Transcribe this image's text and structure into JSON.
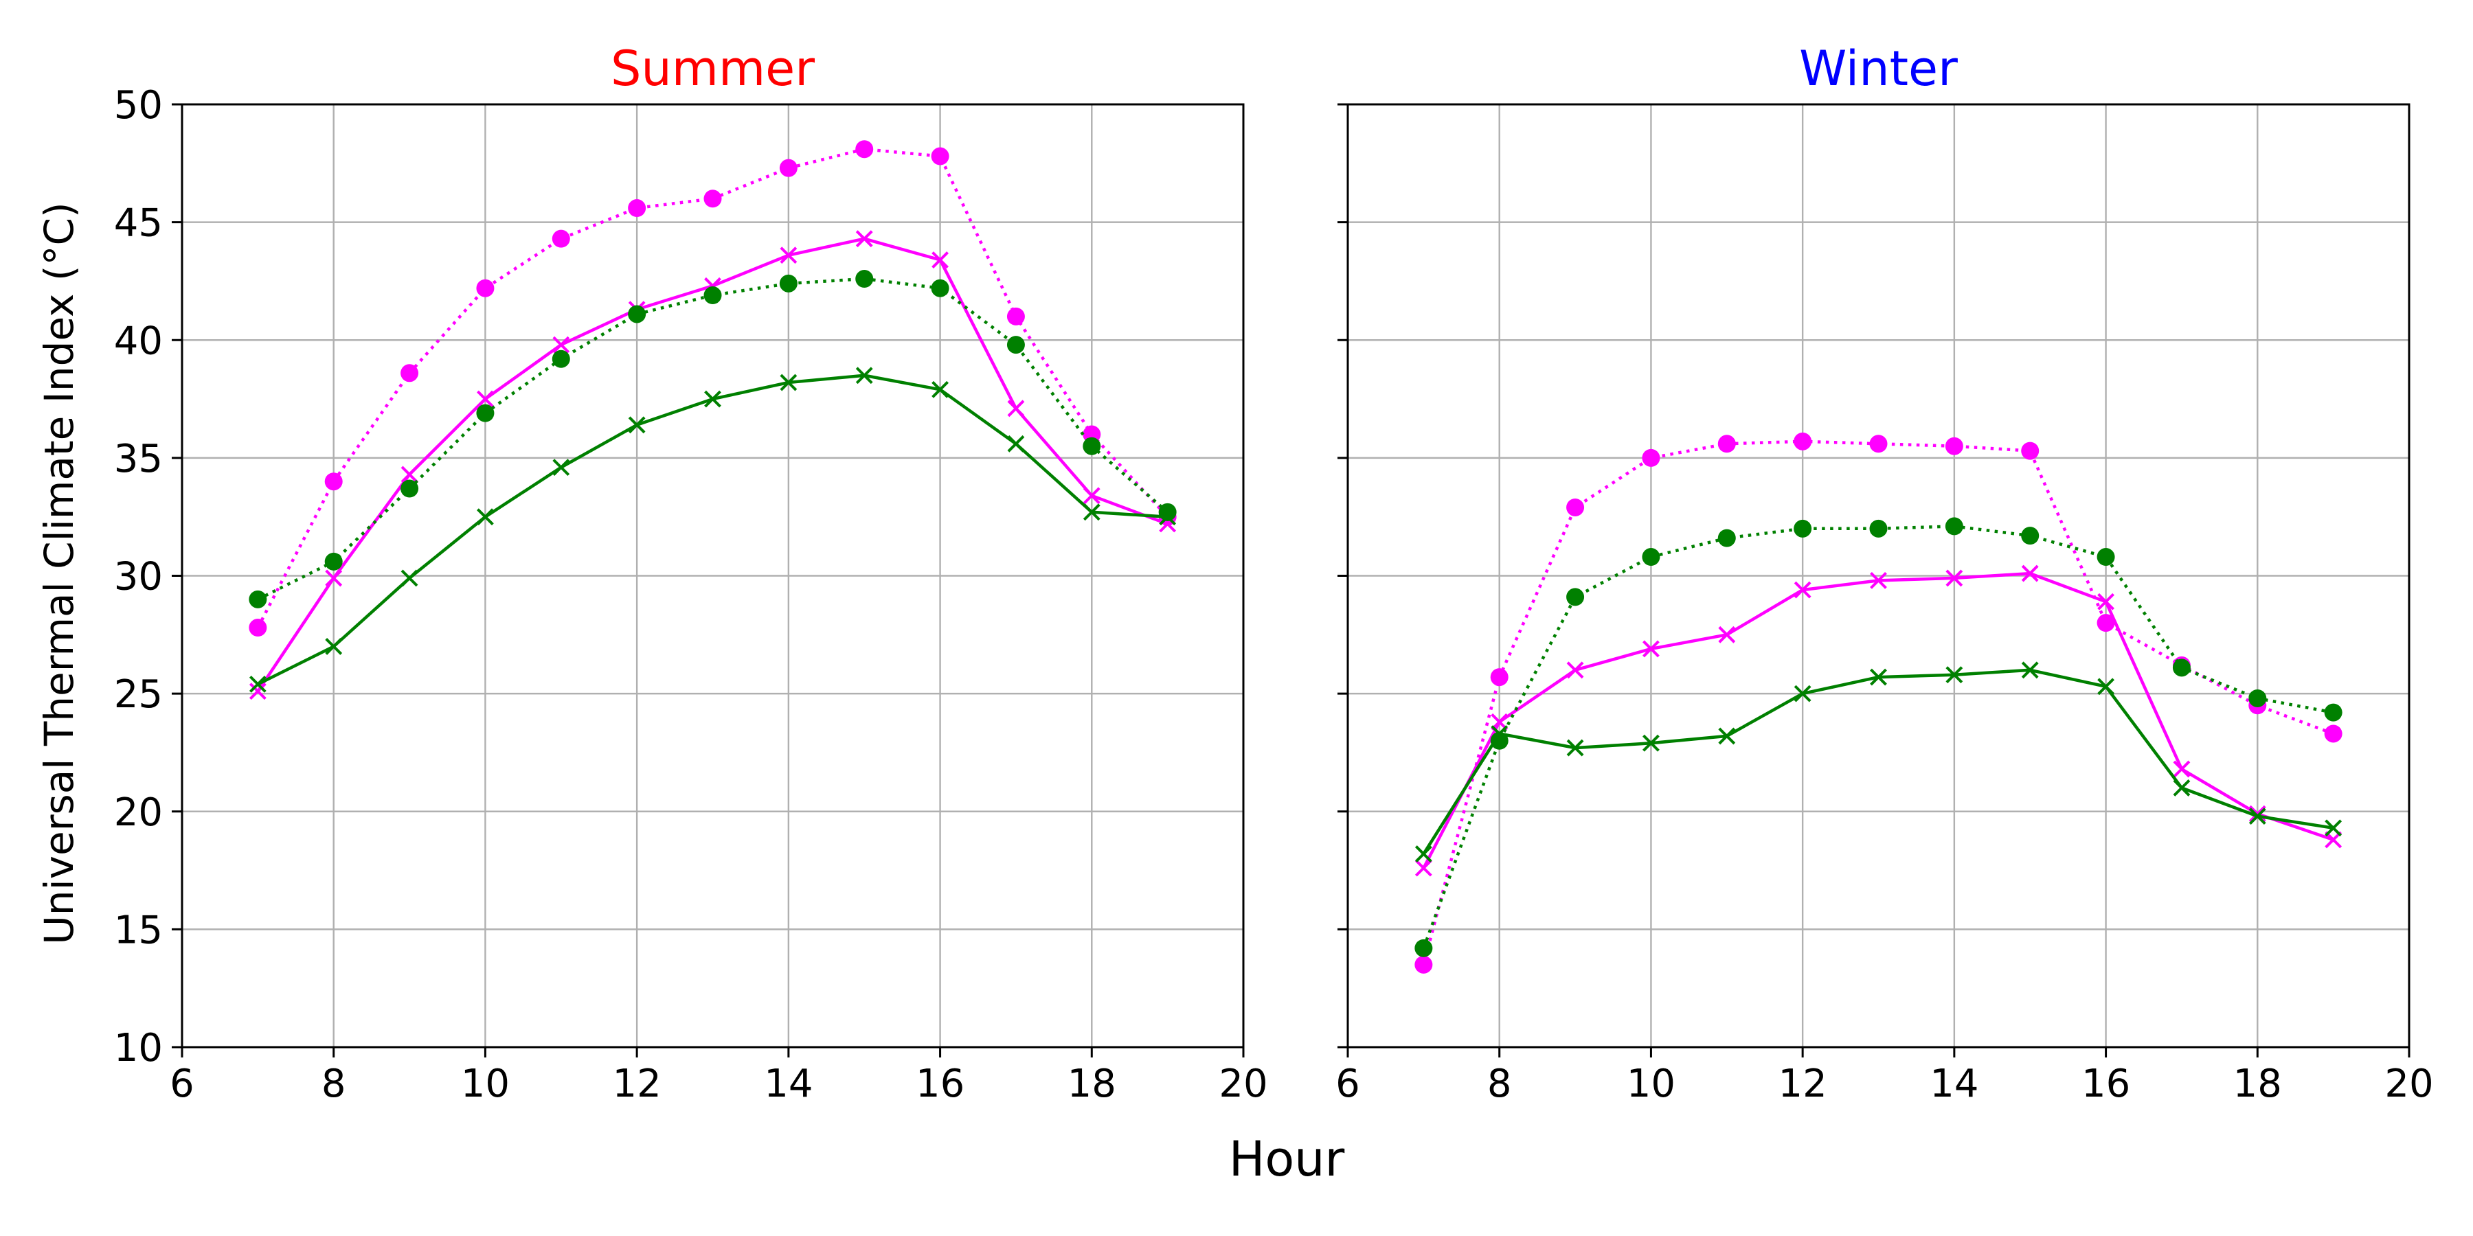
{
  "chart_data": [
    {
      "type": "line",
      "title": "Summer",
      "title_color": "#ff0000",
      "xlabel": "Hour",
      "ylabel": "Universal Thermal Climate Index (°C)",
      "xlim": [
        6,
        20
      ],
      "ylim": [
        10,
        50
      ],
      "xticks": [
        6,
        8,
        10,
        12,
        14,
        16,
        18,
        20
      ],
      "yticks": [
        10,
        15,
        20,
        25,
        30,
        35,
        40,
        45,
        50
      ],
      "grid": true,
      "x": [
        7,
        8,
        9,
        10,
        11,
        12,
        13,
        14,
        15,
        16,
        17,
        18,
        19
      ],
      "series": [
        {
          "color": "#ff00ff",
          "linestyle": "dotted",
          "marker": "circle",
          "values": [
            27.8,
            34.0,
            38.6,
            42.2,
            44.3,
            45.6,
            46.0,
            47.3,
            48.1,
            47.8,
            41.0,
            36.0,
            32.5
          ]
        },
        {
          "color": "#ff00ff",
          "linestyle": "solid",
          "marker": "x",
          "values": [
            25.1,
            29.9,
            34.3,
            37.5,
            39.8,
            41.3,
            42.3,
            43.6,
            44.3,
            43.4,
            37.1,
            33.4,
            32.2
          ]
        },
        {
          "color": "#008000",
          "linestyle": "dotted",
          "marker": "circle",
          "values": [
            29.0,
            30.6,
            33.7,
            36.9,
            39.2,
            41.1,
            41.9,
            42.4,
            42.6,
            42.2,
            39.8,
            35.5,
            32.7
          ]
        },
        {
          "color": "#008000",
          "linestyle": "solid",
          "marker": "x",
          "values": [
            25.4,
            27.0,
            29.9,
            32.5,
            34.6,
            36.4,
            37.5,
            38.2,
            38.5,
            37.9,
            35.6,
            32.7,
            32.5
          ]
        }
      ]
    },
    {
      "type": "line",
      "title": "Winter",
      "title_color": "#0000ff",
      "xlabel": "Hour",
      "xlim": [
        6,
        20
      ],
      "ylim": [
        10,
        50
      ],
      "xticks": [
        6,
        8,
        10,
        12,
        14,
        16,
        18,
        20
      ],
      "yticks": [
        10,
        15,
        20,
        25,
        30,
        35,
        40,
        45,
        50
      ],
      "grid": true,
      "x": [
        7,
        8,
        9,
        10,
        11,
        12,
        13,
        14,
        15,
        16,
        17,
        18,
        19
      ],
      "series": [
        {
          "color": "#ff00ff",
          "linestyle": "dotted",
          "marker": "circle",
          "values": [
            13.5,
            25.7,
            32.9,
            35.0,
            35.6,
            35.7,
            35.6,
            35.5,
            35.3,
            28.0,
            26.2,
            24.5,
            23.3
          ]
        },
        {
          "color": "#ff00ff",
          "linestyle": "solid",
          "marker": "x",
          "values": [
            17.6,
            23.8,
            26.0,
            26.9,
            27.5,
            29.4,
            29.8,
            29.9,
            30.1,
            28.9,
            21.8,
            19.9,
            18.8
          ]
        },
        {
          "color": "#008000",
          "linestyle": "dotted",
          "marker": "circle",
          "values": [
            14.2,
            23.0,
            29.1,
            30.8,
            31.6,
            32.0,
            32.0,
            32.1,
            31.7,
            30.8,
            26.1,
            24.8,
            24.2
          ]
        },
        {
          "color": "#008000",
          "linestyle": "solid",
          "marker": "x",
          "values": [
            18.2,
            23.3,
            22.7,
            22.9,
            23.2,
            25.0,
            25.7,
            25.8,
            26.0,
            25.3,
            21.0,
            19.8,
            19.3
          ]
        }
      ]
    }
  ]
}
